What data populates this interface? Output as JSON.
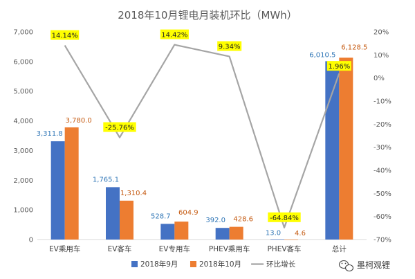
{
  "chart_data": {
    "type": "bar",
    "title": "2018年10月锂电月装机环比（MWh）",
    "categories": [
      "EV乘用车",
      "EV客车",
      "EV专用车",
      "PHEV乘用车",
      "PHEV客车",
      "总计"
    ],
    "series": [
      {
        "name": "2018年9月",
        "type": "bar",
        "axis": "left",
        "color": "#4472C4",
        "values": [
          3311.8,
          1765.1,
          528.7,
          392.0,
          13.0,
          6010.5
        ],
        "labels": [
          "3,311.8",
          "1,765.1",
          "528.7",
          "392.0",
          "13.0",
          "6,010.5"
        ],
        "label_color": "#2E75B6"
      },
      {
        "name": "2018年10月",
        "type": "bar",
        "axis": "left",
        "color": "#ED7D31",
        "values": [
          3780.0,
          1310.4,
          604.9,
          428.6,
          4.6,
          6128.5
        ],
        "labels": [
          "3,780.0",
          "1,310.4",
          "604.9",
          "428.6",
          "4.6",
          "6,128.5"
        ],
        "label_color": "#C55A11"
      },
      {
        "name": "环比增长",
        "type": "line",
        "axis": "right",
        "color": "#A5A5A5",
        "values": [
          14.14,
          -25.76,
          14.42,
          9.34,
          -64.84,
          1.96
        ],
        "labels": [
          "14.14%",
          "-25.76%",
          "14.42%",
          "9.34%",
          "-64.84%",
          "1.96%"
        ],
        "label_bg": "#FFFF00"
      }
    ],
    "y_left": {
      "min": 0,
      "max": 7000,
      "ticks": [
        "0",
        "1,000",
        "2,000",
        "3,000",
        "4,000",
        "5,000",
        "6,000",
        "7,000"
      ]
    },
    "y_right": {
      "min": -70,
      "max": 20,
      "ticks": [
        "-70%",
        "-60%",
        "-50%",
        "-40%",
        "-30%",
        "-20%",
        "-10%",
        "0%",
        "10%",
        "20%"
      ]
    },
    "grid": false,
    "legend_position": "bottom"
  },
  "watermark": {
    "text": "墨柯观锂",
    "icon": "wechat-icon"
  }
}
